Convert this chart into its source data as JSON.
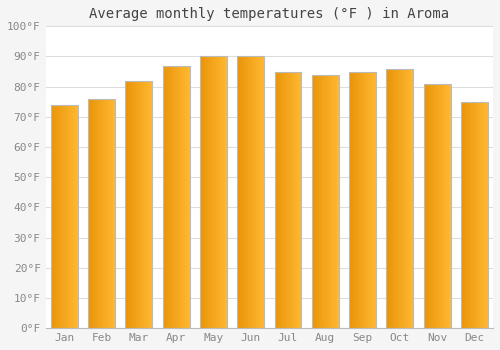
{
  "title": "Average monthly temperatures (°F ) in Aroma",
  "months": [
    "Jan",
    "Feb",
    "Mar",
    "Apr",
    "May",
    "Jun",
    "Jul",
    "Aug",
    "Sep",
    "Oct",
    "Nov",
    "Dec"
  ],
  "values": [
    74,
    76,
    82,
    87,
    90,
    90,
    85,
    84,
    85,
    86,
    81,
    75
  ],
  "ylim": [
    0,
    100
  ],
  "yticks": [
    0,
    10,
    20,
    30,
    40,
    50,
    60,
    70,
    80,
    90,
    100
  ],
  "ytick_labels": [
    "0°F",
    "10°F",
    "20°F",
    "30°F",
    "40°F",
    "50°F",
    "60°F",
    "70°F",
    "80°F",
    "90°F",
    "100°F"
  ],
  "bar_color_left": "#E8940A",
  "bar_color_right": "#FFB830",
  "bar_edge_color": "#BBBBBB",
  "background_color": "#F5F5F5",
  "plot_bg_color": "#FFFFFF",
  "grid_color": "#DDDDDD",
  "title_fontsize": 10,
  "tick_fontsize": 8,
  "title_color": "#444444",
  "tick_color": "#888888"
}
